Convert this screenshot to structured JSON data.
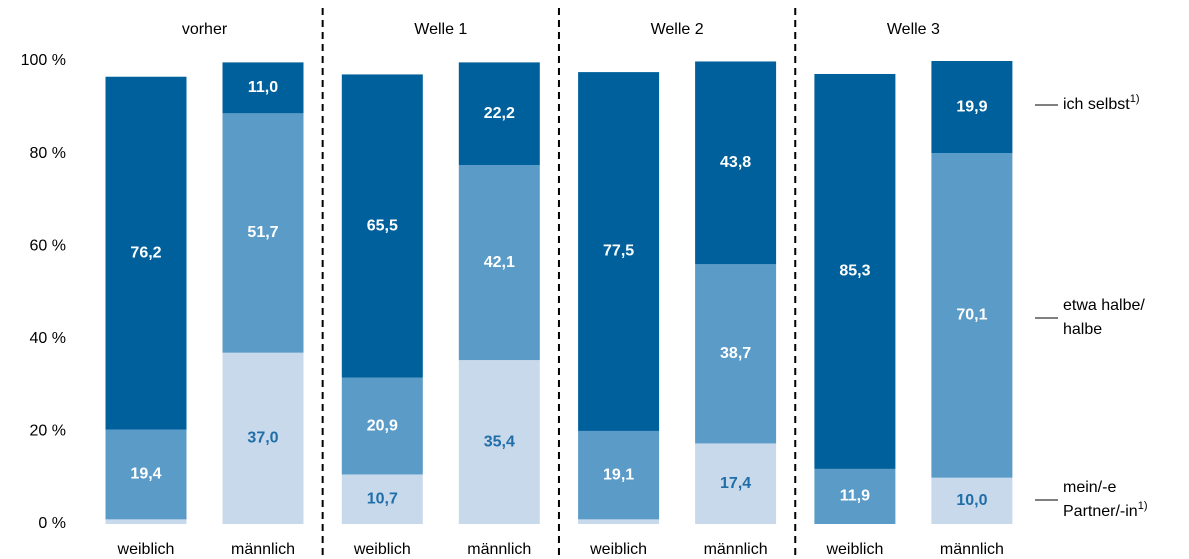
{
  "chart_data": {
    "type": "stacked_bar",
    "groups": [
      "vorher",
      "Welle 1",
      "Welle 2",
      "Welle 3"
    ],
    "categories": [
      "weiblich",
      "männlich",
      "weiblich",
      "männlich",
      "weiblich",
      "männlich",
      "weiblich",
      "männlich"
    ],
    "series": [
      {
        "name": "mein/-e\nPartner/-in",
        "footnote": "1)",
        "color": "#c9d9ec",
        "label_color": "#1f6ea8",
        "values": [
          1,
          37.0,
          10.7,
          35.4,
          1,
          17.4,
          0,
          10.0
        ],
        "value_labels": [
          null,
          "37,0",
          "10,7",
          "35,4",
          null,
          "17,4",
          null,
          "10,0"
        ]
      },
      {
        "name": "etwa halbe/\nhalbe",
        "color": "#5b9bc8",
        "label_color": "#ffffff",
        "values": [
          19.4,
          51.7,
          20.9,
          42.1,
          19.1,
          38.7,
          11.9,
          70.1
        ],
        "value_labels": [
          "19,4",
          "51,7",
          "20,9",
          "42,1",
          "19,1",
          "38,7",
          "11,9",
          "70,1"
        ]
      },
      {
        "name": "ich selbst",
        "footnote": "1)",
        "color": "#00609c",
        "label_color": "#ffffff",
        "values": [
          76.2,
          11.0,
          65.5,
          22.2,
          77.5,
          43.8,
          85.3,
          19.9
        ],
        "value_labels": [
          "76,2",
          "11,0",
          "65,5",
          "22,2",
          "77,5",
          "43,8",
          "85,3",
          "19,9"
        ]
      }
    ],
    "ylim": [
      0,
      100
    ],
    "yticks": [
      {
        "value": 0,
        "label": "0 %"
      },
      {
        "value": 20,
        "label": "20 %"
      },
      {
        "value": 40,
        "label": "40 %"
      },
      {
        "value": 60,
        "label": "60 %"
      },
      {
        "value": 80,
        "label": "80 %"
      },
      {
        "value": 100,
        "label": "100 %"
      }
    ],
    "grid": false
  }
}
